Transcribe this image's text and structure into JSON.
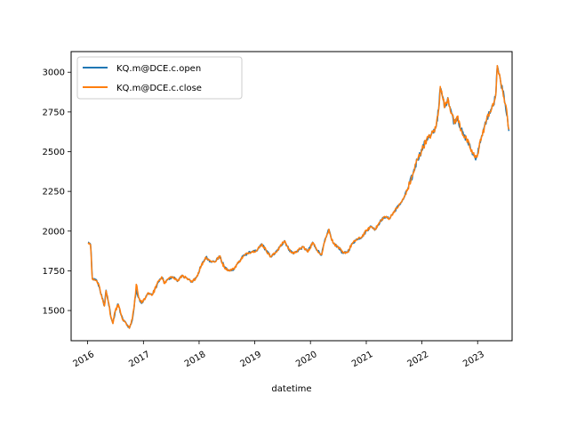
{
  "chart_data": {
    "type": "line",
    "xlabel": "datetime",
    "ylabel": "",
    "xlim": [
      "2015-09-15",
      "2023-08-15"
    ],
    "ylim": [
      1310,
      3130
    ],
    "x_ticks": [
      "2016-01-01",
      "2017-01-01",
      "2018-01-01",
      "2019-01-01",
      "2020-01-01",
      "2021-01-01",
      "2022-01-01",
      "2023-01-01"
    ],
    "x_tick_labels": [
      "2016",
      "2017",
      "2018",
      "2019",
      "2020",
      "2021",
      "2022",
      "2023"
    ],
    "y_ticks": [
      1500,
      1750,
      2000,
      2250,
      2500,
      2750,
      3000
    ],
    "y_tick_labels": [
      "1500",
      "1750",
      "2000",
      "2250",
      "2500",
      "2750",
      "3000"
    ],
    "legend_position": "top-left",
    "grid": false,
    "series": [
      {
        "name": "KQ.m@DCE.c.open",
        "color": "#1f77b4",
        "points": [
          [
            "2016-01-04",
            1930
          ],
          [
            "2016-01-20",
            1918
          ],
          [
            "2016-02-01",
            1700
          ],
          [
            "2016-03-01",
            1690
          ],
          [
            "2016-03-20",
            1640
          ],
          [
            "2016-04-05",
            1580
          ],
          [
            "2016-04-20",
            1530
          ],
          [
            "2016-05-01",
            1628
          ],
          [
            "2016-05-15",
            1560
          ],
          [
            "2016-06-01",
            1460
          ],
          [
            "2016-06-15",
            1420
          ],
          [
            "2016-07-01",
            1500
          ],
          [
            "2016-07-20",
            1540
          ],
          [
            "2016-08-05",
            1480
          ],
          [
            "2016-08-20",
            1440
          ],
          [
            "2016-09-10",
            1420
          ],
          [
            "2016-10-01",
            1390
          ],
          [
            "2016-10-20",
            1440
          ],
          [
            "2016-11-01",
            1520
          ],
          [
            "2016-11-15",
            1630
          ],
          [
            "2016-12-01",
            1580
          ],
          [
            "2016-12-20",
            1545
          ],
          [
            "2017-01-15",
            1580
          ],
          [
            "2017-02-01",
            1610
          ],
          [
            "2017-03-01",
            1600
          ],
          [
            "2017-04-01",
            1665
          ],
          [
            "2017-05-01",
            1710
          ],
          [
            "2017-05-20",
            1672
          ],
          [
            "2017-06-15",
            1700
          ],
          [
            "2017-07-15",
            1710
          ],
          [
            "2017-08-15",
            1688
          ],
          [
            "2017-09-15",
            1720
          ],
          [
            "2017-10-15",
            1700
          ],
          [
            "2017-11-15",
            1680
          ],
          [
            "2017-12-15",
            1710
          ],
          [
            "2018-01-15",
            1780
          ],
          [
            "2018-02-15",
            1838
          ],
          [
            "2018-03-15",
            1810
          ],
          [
            "2018-04-15",
            1808
          ],
          [
            "2018-05-15",
            1840
          ],
          [
            "2018-06-15",
            1775
          ],
          [
            "2018-07-15",
            1750
          ],
          [
            "2018-08-15",
            1760
          ],
          [
            "2018-09-15",
            1800
          ],
          [
            "2018-10-15",
            1840
          ],
          [
            "2018-11-15",
            1860
          ],
          [
            "2018-12-15",
            1872
          ],
          [
            "2019-01-15",
            1875
          ],
          [
            "2019-02-15",
            1920
          ],
          [
            "2019-03-15",
            1880
          ],
          [
            "2019-04-15",
            1840
          ],
          [
            "2019-05-15",
            1860
          ],
          [
            "2019-06-15",
            1900
          ],
          [
            "2019-07-15",
            1940
          ],
          [
            "2019-08-15",
            1880
          ],
          [
            "2019-09-15",
            1860
          ],
          [
            "2019-10-15",
            1880
          ],
          [
            "2019-11-15",
            1900
          ],
          [
            "2019-12-15",
            1870
          ],
          [
            "2020-01-15",
            1930
          ],
          [
            "2020-02-01",
            1900
          ],
          [
            "2020-02-15",
            1880
          ],
          [
            "2020-03-15",
            1850
          ],
          [
            "2020-04-01",
            1930
          ],
          [
            "2020-04-15",
            1965
          ],
          [
            "2020-05-01",
            2010
          ],
          [
            "2020-05-15",
            1960
          ],
          [
            "2020-06-01",
            1920
          ],
          [
            "2020-07-01",
            1900
          ],
          [
            "2020-08-01",
            1860
          ],
          [
            "2020-09-01",
            1870
          ],
          [
            "2020-10-01",
            1920
          ],
          [
            "2020-11-01",
            1950
          ],
          [
            "2020-12-01",
            1960
          ],
          [
            "2021-01-01",
            2000
          ],
          [
            "2021-02-01",
            2030
          ],
          [
            "2021-03-01",
            2010
          ],
          [
            "2021-04-01",
            2060
          ],
          [
            "2021-05-01",
            2090
          ],
          [
            "2021-06-01",
            2080
          ],
          [
            "2021-07-01",
            2120
          ],
          [
            "2021-08-01",
            2160
          ],
          [
            "2021-09-01",
            2200
          ],
          [
            "2021-10-01",
            2270
          ],
          [
            "2021-11-01",
            2350
          ],
          [
            "2021-12-01",
            2450
          ],
          [
            "2022-01-01",
            2510
          ],
          [
            "2022-02-01",
            2580
          ],
          [
            "2022-03-01",
            2600
          ],
          [
            "2022-04-01",
            2650
          ],
          [
            "2022-04-20",
            2760
          ],
          [
            "2022-05-01",
            2900
          ],
          [
            "2022-05-15",
            2850
          ],
          [
            "2022-06-01",
            2780
          ],
          [
            "2022-06-20",
            2840
          ],
          [
            "2022-07-15",
            2740
          ],
          [
            "2022-08-01",
            2680
          ],
          [
            "2022-08-20",
            2720
          ],
          [
            "2022-09-15",
            2640
          ],
          [
            "2022-10-01",
            2600
          ],
          [
            "2022-10-20",
            2580
          ],
          [
            "2022-11-15",
            2520
          ],
          [
            "2022-12-15",
            2460
          ],
          [
            "2023-01-01",
            2480
          ],
          [
            "2023-01-15",
            2560
          ],
          [
            "2023-02-01",
            2600
          ],
          [
            "2023-02-15",
            2660
          ],
          [
            "2023-03-01",
            2700
          ],
          [
            "2023-03-20",
            2750
          ],
          [
            "2023-04-15",
            2790
          ],
          [
            "2023-05-01",
            2870
          ],
          [
            "2023-05-10",
            3040
          ],
          [
            "2023-05-20",
            2990
          ],
          [
            "2023-06-01",
            2940
          ],
          [
            "2023-06-15",
            2880
          ],
          [
            "2023-07-01",
            2800
          ],
          [
            "2023-07-15",
            2720
          ],
          [
            "2023-07-25",
            2630
          ]
        ]
      },
      {
        "name": "KQ.m@DCE.c.close",
        "color": "#ff7f0e",
        "points": [
          [
            "2016-01-04",
            1925
          ],
          [
            "2016-01-20",
            1915
          ],
          [
            "2016-02-01",
            1698
          ],
          [
            "2016-03-01",
            1688
          ],
          [
            "2016-03-20",
            1645
          ],
          [
            "2016-04-05",
            1575
          ],
          [
            "2016-04-20",
            1528
          ],
          [
            "2016-05-01",
            1625
          ],
          [
            "2016-05-15",
            1558
          ],
          [
            "2016-06-01",
            1462
          ],
          [
            "2016-06-15",
            1418
          ],
          [
            "2016-07-01",
            1498
          ],
          [
            "2016-07-20",
            1538
          ],
          [
            "2016-08-05",
            1482
          ],
          [
            "2016-08-20",
            1438
          ],
          [
            "2016-09-10",
            1418
          ],
          [
            "2016-10-01",
            1388
          ],
          [
            "2016-10-20",
            1445
          ],
          [
            "2016-11-01",
            1522
          ],
          [
            "2016-11-15",
            1665
          ],
          [
            "2016-12-01",
            1582
          ],
          [
            "2016-12-20",
            1548
          ],
          [
            "2017-01-15",
            1582
          ],
          [
            "2017-02-01",
            1612
          ],
          [
            "2017-03-01",
            1598
          ],
          [
            "2017-04-01",
            1668
          ],
          [
            "2017-05-01",
            1712
          ],
          [
            "2017-05-20",
            1670
          ],
          [
            "2017-06-15",
            1702
          ],
          [
            "2017-07-15",
            1712
          ],
          [
            "2017-08-15",
            1686
          ],
          [
            "2017-09-15",
            1722
          ],
          [
            "2017-10-15",
            1698
          ],
          [
            "2017-11-15",
            1678
          ],
          [
            "2017-12-15",
            1712
          ],
          [
            "2018-01-15",
            1782
          ],
          [
            "2018-02-15",
            1836
          ],
          [
            "2018-03-15",
            1812
          ],
          [
            "2018-04-15",
            1806
          ],
          [
            "2018-05-15",
            1842
          ],
          [
            "2018-06-15",
            1772
          ],
          [
            "2018-07-15",
            1752
          ],
          [
            "2018-08-15",
            1762
          ],
          [
            "2018-09-15",
            1802
          ],
          [
            "2018-10-15",
            1838
          ],
          [
            "2018-11-15",
            1862
          ],
          [
            "2018-12-15",
            1870
          ],
          [
            "2019-01-15",
            1878
          ],
          [
            "2019-02-15",
            1918
          ],
          [
            "2019-03-15",
            1882
          ],
          [
            "2019-04-15",
            1838
          ],
          [
            "2019-05-15",
            1862
          ],
          [
            "2019-06-15",
            1902
          ],
          [
            "2019-07-15",
            1938
          ],
          [
            "2019-08-15",
            1882
          ],
          [
            "2019-09-15",
            1858
          ],
          [
            "2019-10-15",
            1882
          ],
          [
            "2019-11-15",
            1902
          ],
          [
            "2019-12-15",
            1868
          ],
          [
            "2020-01-15",
            1928
          ],
          [
            "2020-02-01",
            1902
          ],
          [
            "2020-02-15",
            1878
          ],
          [
            "2020-03-15",
            1852
          ],
          [
            "2020-04-01",
            1928
          ],
          [
            "2020-04-15",
            1968
          ],
          [
            "2020-05-01",
            2012
          ],
          [
            "2020-05-15",
            1958
          ],
          [
            "2020-06-01",
            1922
          ],
          [
            "2020-07-01",
            1898
          ],
          [
            "2020-08-01",
            1862
          ],
          [
            "2020-09-01",
            1868
          ],
          [
            "2020-10-01",
            1922
          ],
          [
            "2020-11-01",
            1948
          ],
          [
            "2020-12-01",
            1962
          ],
          [
            "2021-01-01",
            2002
          ],
          [
            "2021-02-01",
            2028
          ],
          [
            "2021-03-01",
            2012
          ],
          [
            "2021-04-01",
            2058
          ],
          [
            "2021-05-01",
            2092
          ],
          [
            "2021-06-01",
            2078
          ],
          [
            "2021-07-01",
            2122
          ],
          [
            "2021-08-01",
            2158
          ],
          [
            "2021-09-01",
            2202
          ],
          [
            "2021-10-01",
            2268
          ],
          [
            "2021-11-01",
            2352
          ],
          [
            "2021-12-01",
            2448
          ],
          [
            "2022-01-01",
            2512
          ],
          [
            "2022-02-01",
            2578
          ],
          [
            "2022-03-01",
            2602
          ],
          [
            "2022-04-01",
            2648
          ],
          [
            "2022-04-20",
            2762
          ],
          [
            "2022-05-01",
            2910
          ],
          [
            "2022-05-15",
            2848
          ],
          [
            "2022-06-01",
            2782
          ],
          [
            "2022-06-20",
            2838
          ],
          [
            "2022-07-15",
            2742
          ],
          [
            "2022-08-01",
            2678
          ],
          [
            "2022-08-20",
            2722
          ],
          [
            "2022-09-15",
            2638
          ],
          [
            "2022-10-01",
            2602
          ],
          [
            "2022-10-20",
            2578
          ],
          [
            "2022-11-15",
            2518
          ],
          [
            "2022-12-15",
            2462
          ],
          [
            "2023-01-01",
            2482
          ],
          [
            "2023-01-15",
            2558
          ],
          [
            "2023-02-01",
            2602
          ],
          [
            "2023-02-15",
            2658
          ],
          [
            "2023-03-01",
            2702
          ],
          [
            "2023-03-20",
            2748
          ],
          [
            "2023-04-15",
            2792
          ],
          [
            "2023-05-01",
            2868
          ],
          [
            "2023-05-10",
            3042
          ],
          [
            "2023-05-20",
            2988
          ],
          [
            "2023-06-01",
            2938
          ],
          [
            "2023-06-15",
            2882
          ],
          [
            "2023-07-01",
            2802
          ],
          [
            "2023-07-15",
            2718
          ],
          [
            "2023-07-25",
            2640
          ]
        ]
      }
    ]
  }
}
